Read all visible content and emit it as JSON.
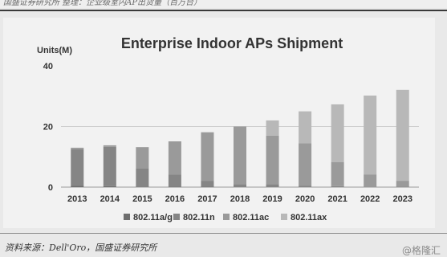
{
  "header": {
    "caption": "国盛证券研究所 整理：企业级室内AP出货量（百万台）"
  },
  "source": "资料来源：Dell'Oro，国盛证券研究所",
  "watermark": "@格隆汇",
  "chart_data": {
    "type": "bar",
    "stacked": true,
    "title": "Enterprise Indoor APs Shipment",
    "ylabel": "Units(M)",
    "xlabel": "",
    "ylim": [
      0,
      40
    ],
    "yticks": [
      0,
      20,
      40
    ],
    "grid": true,
    "legend_position": "bottom",
    "categories": [
      "2013",
      "2014",
      "2015",
      "2016",
      "2017",
      "2018",
      "2019",
      "2020",
      "2021",
      "2022",
      "2023"
    ],
    "series": [
      {
        "name": "802.11a/g",
        "color": "#6e6e6e",
        "values": [
          0.5,
          0.3,
          0.2,
          0.1,
          0.1,
          0,
          0,
          0,
          0,
          0,
          0
        ]
      },
      {
        "name": "802.11n",
        "color": "#858585",
        "values": [
          12,
          13,
          6,
          4,
          2,
          1,
          1,
          0.5,
          0.3,
          0.2,
          0.1
        ]
      },
      {
        "name": "802.11ac",
        "color": "#9a9a9a",
        "values": [
          0.5,
          0.5,
          7,
          11,
          16,
          19,
          16,
          14,
          8,
          4,
          2
        ]
      },
      {
        "name": "802.11ax",
        "color": "#b8b8b8",
        "values": [
          0,
          0,
          0,
          0,
          0,
          0,
          5,
          10.5,
          19,
          26,
          30
        ]
      }
    ]
  }
}
